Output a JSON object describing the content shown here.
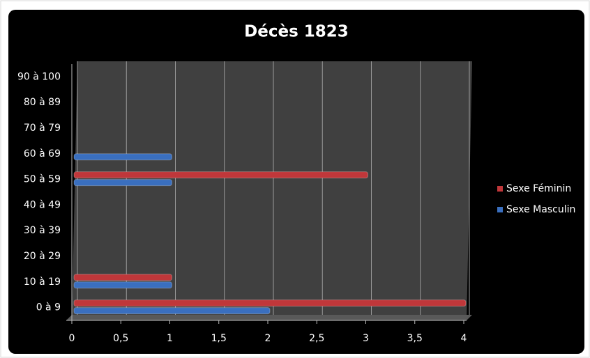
{
  "chart_data": {
    "type": "hbar",
    "title": "Décès 1823",
    "categories": [
      "0 à 9",
      "10 à 19",
      "20 à 29",
      "30 à 39",
      "40 à 49",
      "50 à 59",
      "60 à 69",
      "70 à 79",
      "80 à 89",
      "90 à 100"
    ],
    "series": [
      {
        "name": "Sexe Féminin",
        "color": "#c0373a",
        "values": [
          4,
          1,
          0,
          0,
          0,
          3,
          0,
          0,
          0,
          0
        ]
      },
      {
        "name": "Sexe Masculin",
        "color": "#3a6fbf",
        "values": [
          2,
          1,
          0,
          0,
          0,
          1,
          1,
          0,
          0,
          0
        ]
      }
    ],
    "xlim": [
      0,
      4
    ],
    "xticks": [
      0,
      {
        "value": 0.5,
        "label": "0,5"
      },
      1,
      {
        "value": 1.5,
        "label": "1,5"
      },
      2,
      {
        "value": 2.5,
        "label": "2,5"
      },
      3,
      {
        "value": 3.5,
        "label": "3,5"
      },
      4
    ],
    "grid": true
  }
}
